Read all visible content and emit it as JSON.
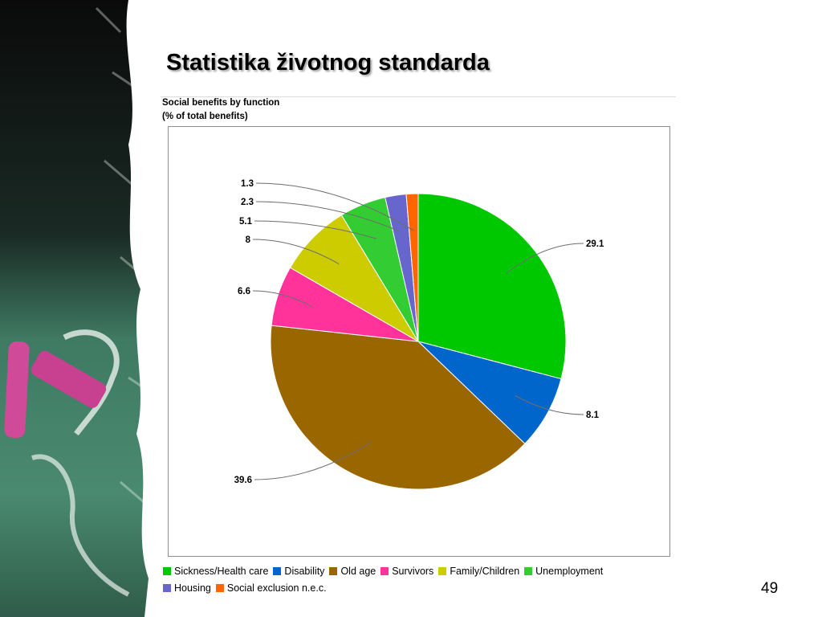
{
  "slide": {
    "title": "Statistika životnog standarda",
    "page_number": "49"
  },
  "chart_data": {
    "type": "pie",
    "title": "Social benefits by function",
    "subtitle": "(% of total benefits)",
    "legend_position": "bottom",
    "slices": [
      {
        "name": "Sickness/Health care",
        "value": 29.1,
        "label": "29.1",
        "color": "#00c800"
      },
      {
        "name": "Disability",
        "value": 8.1,
        "label": "8.1",
        "color": "#0066cc"
      },
      {
        "name": "Old age",
        "value": 39.6,
        "label": "39.6",
        "color": "#996600"
      },
      {
        "name": "Survivors",
        "value": 6.6,
        "label": "6.6",
        "color": "#ff3399"
      },
      {
        "name": "Family/Children",
        "value": 8,
        "label": "8",
        "color": "#cccc00"
      },
      {
        "name": "Unemployment",
        "value": 5.1,
        "label": "5.1",
        "color": "#33cc33"
      },
      {
        "name": "Housing",
        "value": 2.3,
        "label": "2.3",
        "color": "#6666cc"
      },
      {
        "name": "Social exclusion n.e.c.",
        "value": 1.3,
        "label": "1.3",
        "color": "#ff6600"
      }
    ]
  }
}
